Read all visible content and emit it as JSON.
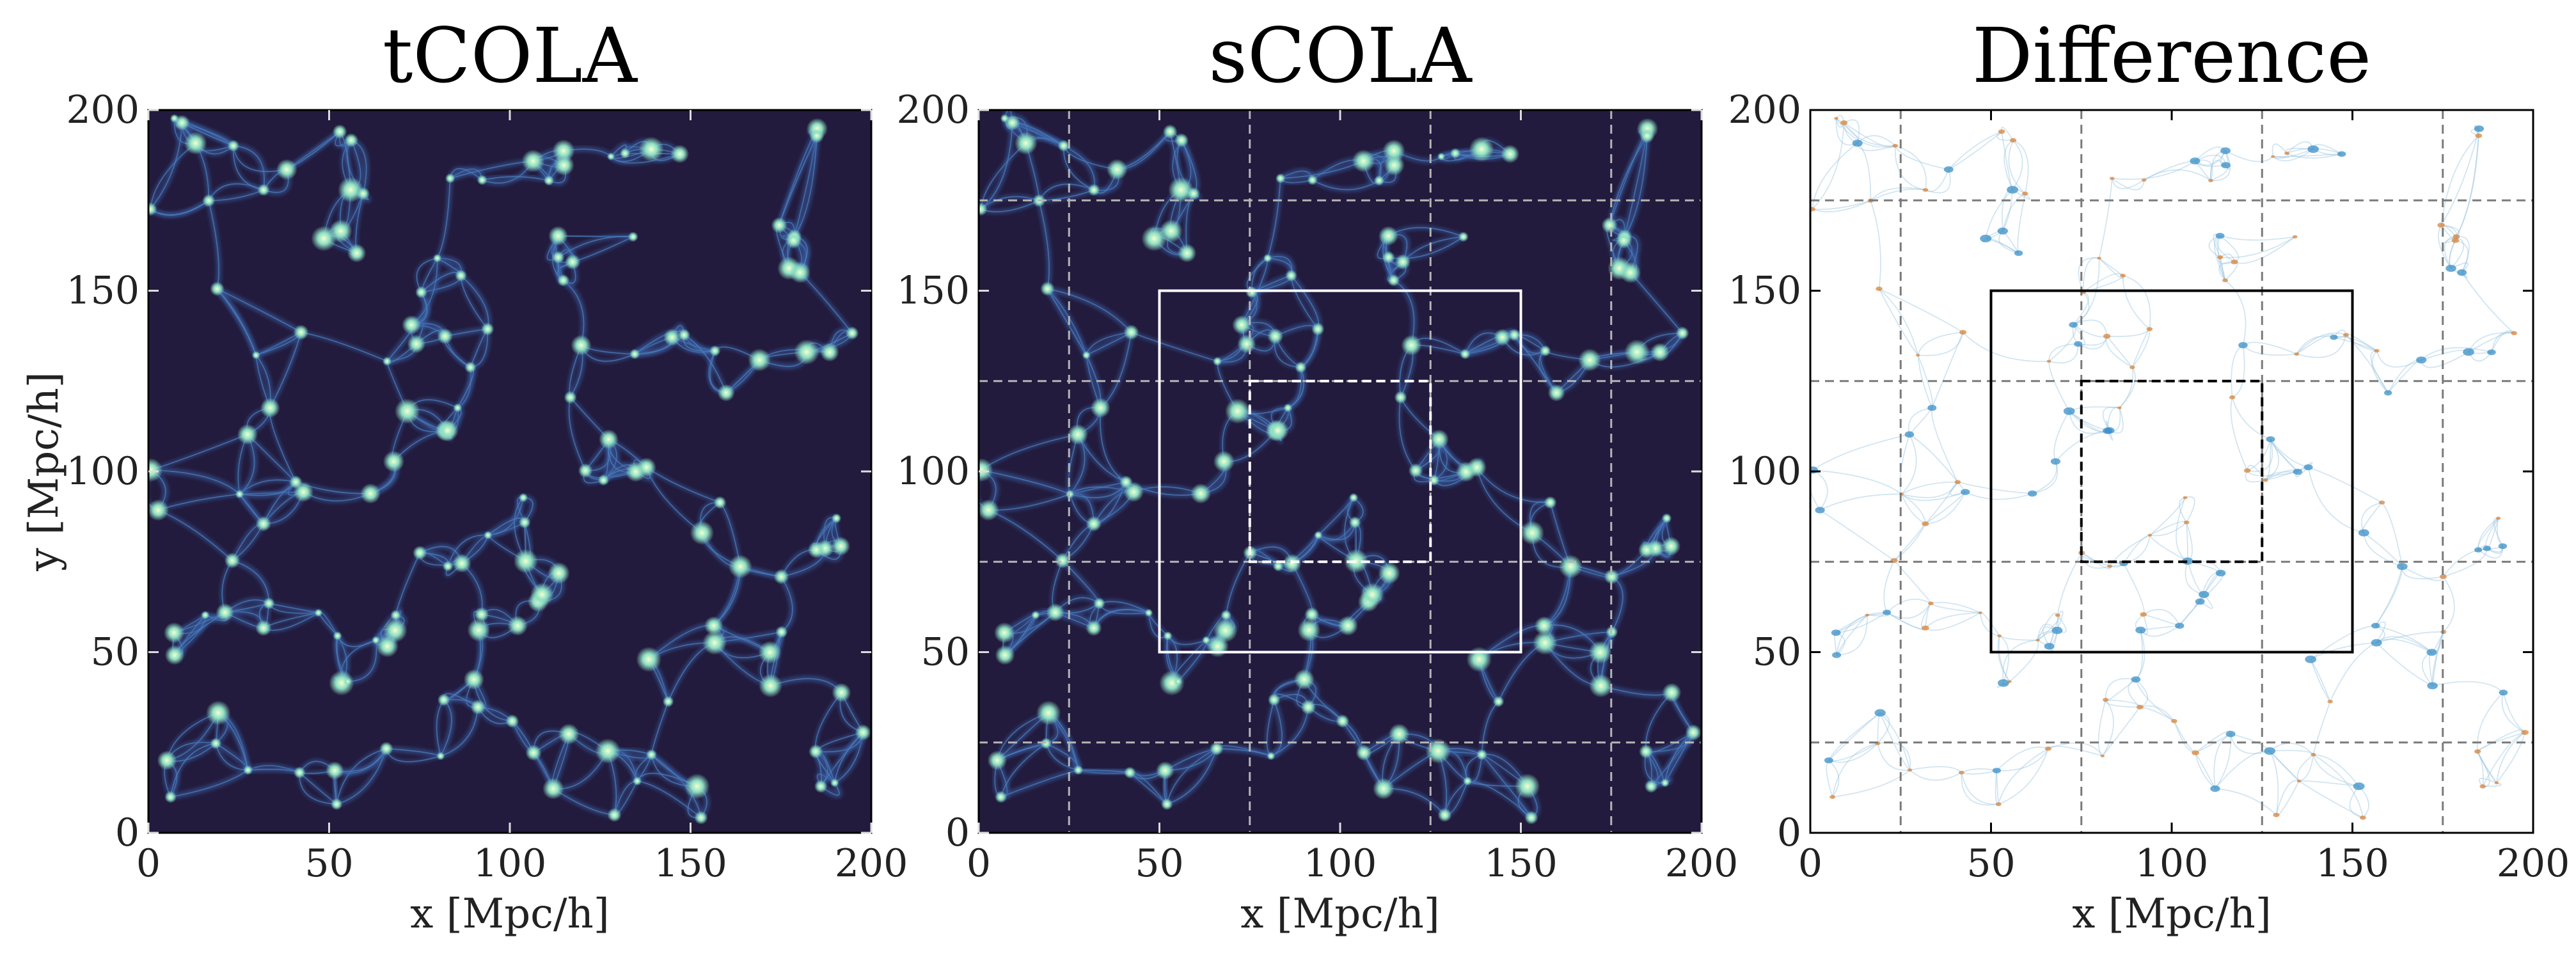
{
  "panels": [
    {
      "id": "tcola",
      "title": "tCOLA",
      "ylabel": "y [Mpc/h]",
      "xlabel": "x [Mpc/h]",
      "show_grid": false,
      "show_boxes": false,
      "style": "dark-field"
    },
    {
      "id": "scola",
      "title": "sCOLA",
      "ylabel": "",
      "xlabel": "x [Mpc/h]",
      "show_grid": true,
      "show_boxes": true,
      "style": "dark-field"
    },
    {
      "id": "difference",
      "title": "Difference",
      "ylabel": "",
      "xlabel": "x [Mpc/h]",
      "show_grid": true,
      "show_boxes": true,
      "style": "light-field"
    }
  ],
  "axis": {
    "range": [
      0,
      200
    ],
    "ticks": [
      "0",
      "50",
      "100",
      "150",
      "200"
    ]
  },
  "grid_lines_data": [
    25,
    75,
    125,
    175
  ],
  "outer_box_data": [
    50,
    50,
    150,
    150
  ],
  "inner_box_data": [
    75,
    75,
    125,
    125
  ],
  "colors": {
    "dark_bg": "#221b3d",
    "filament": "#3b5fa6",
    "knot": "#8fe0c4",
    "diff_bg": "#ffffff",
    "diff_neg": "#3a8fc7",
    "diff_pos": "#d9843a"
  }
}
